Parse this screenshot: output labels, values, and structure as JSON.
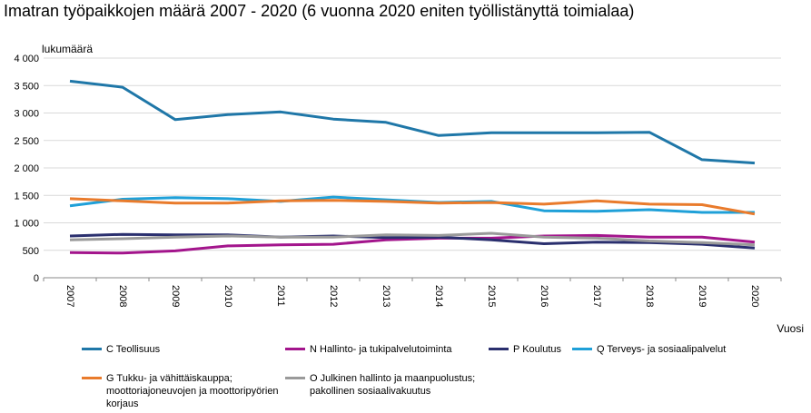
{
  "title": "Imatran työpaikkojen määrä 2007 - 2020 (6 vuonna 2020 eniten työllistänyttä toimialaa)",
  "chart_data": {
    "type": "line",
    "ylabel": "lukumäärä",
    "xlabel": "Vuosi",
    "ylim": [
      0,
      4000
    ],
    "yticks": [
      "4 000",
      "3 500",
      "3 000",
      "2 500",
      "2 000",
      "1 500",
      "1 000",
      "500",
      "0"
    ],
    "ytick_values": [
      4000,
      3500,
      3000,
      2500,
      2000,
      1500,
      1000,
      500,
      0
    ],
    "grid": true,
    "legend_position": "bottom",
    "categories": [
      "2007",
      "2008",
      "2009",
      "2010",
      "2011",
      "2012",
      "2013",
      "2014",
      "2015",
      "2016",
      "2017",
      "2018",
      "2019",
      "2020"
    ],
    "series": [
      {
        "name": "C Teollisuus",
        "color": "#1f77a8",
        "values": [
          3580,
          3470,
          2880,
          2970,
          3020,
          2890,
          2830,
          2590,
          2640,
          2640,
          2640,
          2650,
          2150,
          2090
        ]
      },
      {
        "name": "N Hallinto- ja tukipalvelutoiminta",
        "color": "#a3158c",
        "values": [
          460,
          450,
          490,
          580,
          600,
          610,
          690,
          720,
          720,
          760,
          770,
          740,
          740,
          650
        ]
      },
      {
        "name": "P Koulutus",
        "color": "#2a2f6e",
        "values": [
          760,
          790,
          780,
          780,
          740,
          760,
          730,
          740,
          690,
          620,
          650,
          640,
          610,
          540
        ]
      },
      {
        "name": "Q Terveys- ja sosiaalipalvelut",
        "color": "#1fa0d8",
        "values": [
          1310,
          1430,
          1460,
          1440,
          1390,
          1470,
          1420,
          1370,
          1390,
          1220,
          1210,
          1240,
          1190,
          1190
        ]
      },
      {
        "name": "G Tukku- ja vähittäiskauppa; moottoriajoneuvojen ja moottoripyörien korjaus",
        "color": "#e97b2c",
        "values": [
          1440,
          1400,
          1360,
          1360,
          1400,
          1410,
          1390,
          1360,
          1370,
          1340,
          1400,
          1340,
          1330,
          1160
        ]
      },
      {
        "name": "O Julkinen hallinto ja maanpuolustus; pakollinen sosiaalivakuutus",
        "color": "#9a9a9a",
        "values": [
          690,
          710,
          740,
          760,
          740,
          740,
          780,
          770,
          810,
          740,
          720,
          670,
          640,
          600
        ]
      }
    ]
  },
  "legend": [
    {
      "lines": [
        "C Teollisuus"
      ],
      "color": "#1f77a8"
    },
    {
      "lines": [
        "N Hallinto- ja tukipalvelutoiminta"
      ],
      "color": "#a3158c"
    },
    {
      "lines": [
        "P Koulutus"
      ],
      "color": "#2a2f6e"
    },
    {
      "lines": [
        "Q Terveys- ja sosiaalipalvelut"
      ],
      "color": "#1fa0d8"
    },
    {
      "lines": [
        "G Tukku- ja vähittäiskauppa;",
        "moottoriajoneuvojen ja moottoripyörien",
        "korjaus"
      ],
      "color": "#e97b2c"
    },
    {
      "lines": [
        "O Julkinen hallinto ja maanpuolustus;",
        "pakollinen sosiaalivakuutus"
      ],
      "color": "#9a9a9a"
    }
  ]
}
